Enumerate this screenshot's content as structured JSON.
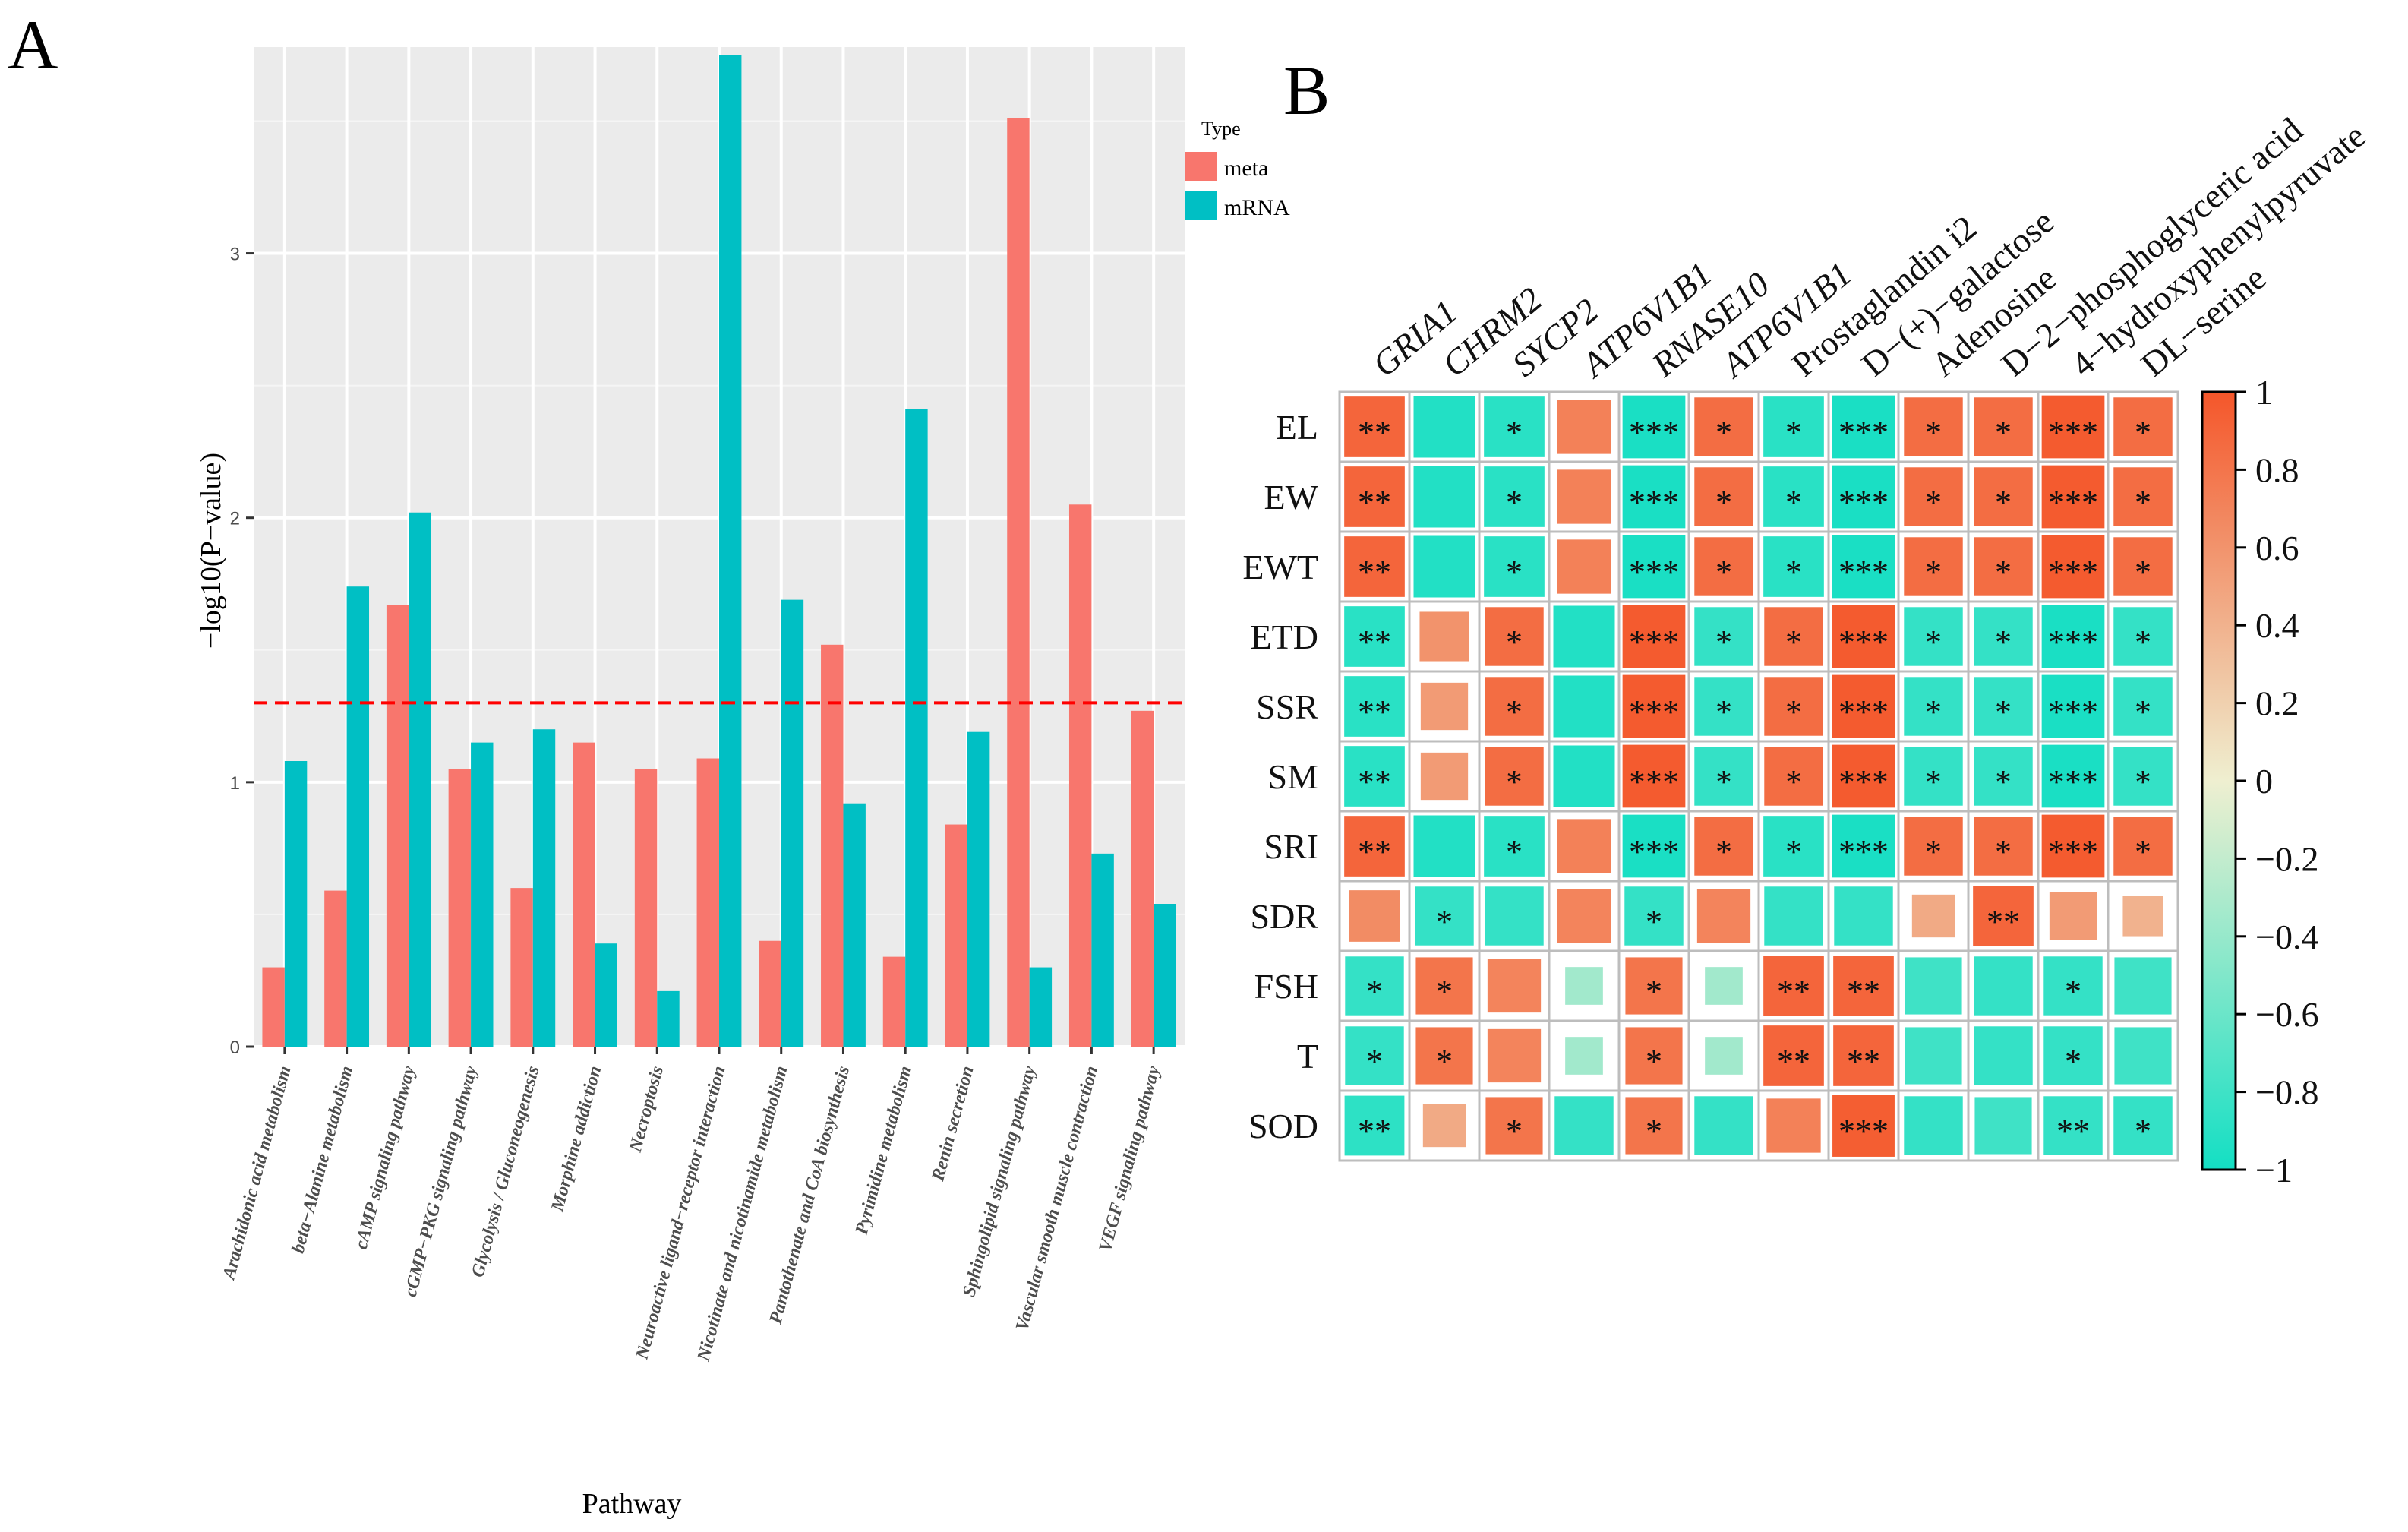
{
  "panel_a_label": "A",
  "panel_b_label": "B",
  "colors": {
    "meta": "#F8766D",
    "mRNA": "#00BFC4",
    "threshold": "#FF0000",
    "panel_bg": "#EBEBEB",
    "grid": "#FFFFFF",
    "heat_pos": "#F4562A",
    "heat_mid": "#EFEFD0",
    "heat_neg": "#13DFC4"
  },
  "chart_data": [
    {
      "type": "bar",
      "title": "",
      "xlabel": "Pathway",
      "ylabel": "−log10(P−value)",
      "ylim": [
        0,
        3.78
      ],
      "yticks": [
        0,
        1,
        2,
        3
      ],
      "grid": true,
      "threshold": 1.3,
      "legend": {
        "title": "Type",
        "position": "top-right",
        "entries": [
          "meta",
          "mRNA"
        ]
      },
      "categories": [
        "Arachidonic acid metabolism",
        "beta−Alanine metabolism",
        "cAMP signaling pathway",
        "cGMP−PKG signaling pathway",
        "Glycolysis / Gluconeogenesis",
        "Morphine addiction",
        "Necroptosis",
        "Neuroactive ligand−receptor interaction",
        "Nicotinate and nicotinamide metabolism",
        "Pantothenate and CoA biosynthesis",
        "Pyrimidine metabolism",
        "Renin secretion",
        "Sphingolipid signaling pathway",
        "Vascular smooth muscle contraction",
        "VEGF signaling pathway"
      ],
      "series": [
        {
          "name": "meta",
          "values": [
            0.3,
            0.59,
            1.67,
            1.05,
            0.6,
            1.15,
            1.05,
            1.09,
            0.4,
            1.52,
            0.34,
            0.84,
            3.51,
            2.05,
            1.27
          ]
        },
        {
          "name": "mRNA",
          "values": [
            1.08,
            1.74,
            2.02,
            1.15,
            1.2,
            0.39,
            0.21,
            3.75,
            1.69,
            0.92,
            2.41,
            1.19,
            0.3,
            0.73,
            0.54
          ]
        }
      ]
    },
    {
      "type": "heatmap",
      "title": "",
      "columns": [
        "GRIA1",
        "CHRM2",
        "SYCP2",
        "ATP6V1B1",
        "RNASE10",
        "ATP6V1B1",
        "Prostaglandin i2",
        "D−(+)−galactose",
        "Adenosine",
        "D−2−phosphoglyceric acid",
        "4−hydroxyphenylpyruvate",
        "DL−serine"
      ],
      "italic_columns": [
        true,
        true,
        true,
        true,
        true,
        true,
        false,
        false,
        false,
        false,
        false,
        false
      ],
      "rows": [
        "EL",
        "EW",
        "EWT",
        "ETD",
        "SSR",
        "SM",
        "SRI",
        "SDR",
        "FSH",
        "T",
        "SOD"
      ],
      "values": [
        [
          0.9,
          -0.93,
          -0.9,
          0.72,
          -0.97,
          0.85,
          -0.9,
          -0.97,
          0.85,
          0.85,
          0.97,
          0.85
        ],
        [
          0.9,
          -0.93,
          -0.9,
          0.72,
          -0.97,
          0.85,
          -0.9,
          -0.97,
          0.85,
          0.85,
          0.97,
          0.85
        ],
        [
          0.9,
          -0.93,
          -0.9,
          0.72,
          -0.97,
          0.85,
          -0.9,
          -0.97,
          0.85,
          0.85,
          0.97,
          0.85
        ],
        [
          -0.9,
          0.6,
          0.85,
          -0.93,
          0.97,
          -0.85,
          0.85,
          0.97,
          -0.85,
          -0.85,
          -0.97,
          -0.85
        ],
        [
          -0.9,
          0.55,
          0.85,
          -0.93,
          0.97,
          -0.85,
          0.85,
          0.97,
          -0.85,
          -0.85,
          -0.97,
          -0.85
        ],
        [
          -0.9,
          0.55,
          0.85,
          -0.93,
          0.97,
          -0.85,
          0.85,
          0.97,
          -0.85,
          -0.85,
          -0.97,
          -0.85
        ],
        [
          0.9,
          -0.93,
          -0.9,
          0.72,
          -0.97,
          0.85,
          -0.9,
          -0.97,
          0.85,
          0.85,
          0.97,
          0.85
        ],
        [
          0.65,
          -0.85,
          -0.85,
          0.7,
          -0.85,
          0.7,
          -0.85,
          -0.85,
          0.45,
          0.9,
          0.55,
          0.4
        ],
        [
          -0.85,
          0.8,
          0.7,
          -0.35,
          0.8,
          -0.35,
          0.9,
          0.9,
          -0.8,
          -0.85,
          -0.85,
          -0.8
        ],
        [
          -0.85,
          0.8,
          0.7,
          -0.35,
          0.8,
          -0.35,
          0.9,
          0.9,
          -0.8,
          -0.85,
          -0.85,
          -0.8
        ],
        [
          -0.88,
          0.45,
          0.8,
          -0.85,
          0.8,
          -0.85,
          0.72,
          0.95,
          -0.85,
          -0.8,
          -0.85,
          -0.85
        ]
      ],
      "significance": [
        [
          "**",
          "",
          "*",
          "",
          "***",
          "*",
          "*",
          "***",
          "*",
          "*",
          "***",
          "*"
        ],
        [
          "**",
          "",
          "*",
          "",
          "***",
          "*",
          "*",
          "***",
          "*",
          "*",
          "***",
          "*"
        ],
        [
          "**",
          "",
          "*",
          "",
          "***",
          "*",
          "*",
          "***",
          "*",
          "*",
          "***",
          "*"
        ],
        [
          "**",
          "",
          "*",
          "",
          "***",
          "*",
          "*",
          "***",
          "*",
          "*",
          "***",
          "*"
        ],
        [
          "**",
          "",
          "*",
          "",
          "***",
          "*",
          "*",
          "***",
          "*",
          "*",
          "***",
          "*"
        ],
        [
          "**",
          "",
          "*",
          "",
          "***",
          "*",
          "*",
          "***",
          "*",
          "*",
          "***",
          "*"
        ],
        [
          "**",
          "",
          "*",
          "",
          "***",
          "*",
          "*",
          "***",
          "*",
          "*",
          "***",
          "*"
        ],
        [
          "",
          "*",
          "",
          "",
          "*",
          "",
          "",
          "",
          "",
          "**",
          "",
          ""
        ],
        [
          "*",
          "*",
          "",
          "",
          "*",
          "",
          "**",
          "**",
          "",
          "",
          "*",
          ""
        ],
        [
          "*",
          "*",
          "",
          "",
          "*",
          "",
          "**",
          "**",
          "",
          "",
          "*",
          ""
        ],
        [
          "**",
          "",
          "*",
          "",
          "*",
          "",
          "",
          "***",
          "",
          "",
          "**",
          "*"
        ]
      ],
      "colorbar": {
        "range": [
          -1,
          1
        ],
        "ticks": [
          "1",
          "0.8",
          "0.6",
          "0.4",
          "0.2",
          "0",
          "−0.2",
          "−0.4",
          "−0.6",
          "−0.8",
          "−1"
        ]
      }
    }
  ]
}
